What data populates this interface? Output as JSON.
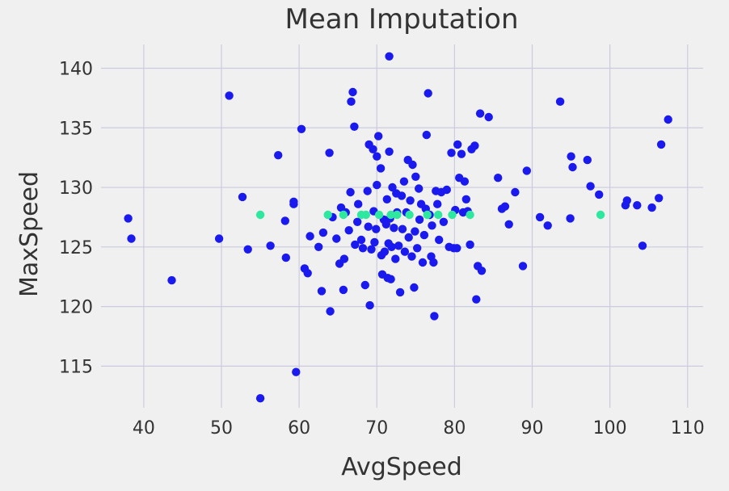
{
  "chart_data": {
    "type": "scatter",
    "title": "Mean Imputation",
    "xlabel": "AvgSpeed",
    "ylabel": "MaxSpeed",
    "xlim": [
      34.5,
      112
    ],
    "ylim": [
      111.5,
      142
    ],
    "xticks": [
      40,
      50,
      60,
      70,
      80,
      90,
      100,
      110
    ],
    "yticks": [
      115,
      120,
      125,
      130,
      135,
      140
    ],
    "grid": true,
    "colors": {
      "background": "#f0f0f0",
      "grid": "#cbcbe0",
      "observed": "#1a1aee",
      "imputed": "#2ee8a0",
      "text": "#333333"
    },
    "series": [
      {
        "role": "observed",
        "points": [
          [
            38.0,
            127.4
          ],
          [
            38.4,
            125.7
          ],
          [
            43.6,
            122.2
          ],
          [
            49.7,
            125.7
          ],
          [
            51.0,
            137.7
          ],
          [
            52.7,
            129.2
          ],
          [
            53.4,
            124.8
          ],
          [
            55.0,
            112.3
          ],
          [
            56.3,
            125.1
          ],
          [
            57.3,
            132.7
          ],
          [
            58.2,
            127.2
          ],
          [
            58.3,
            124.1
          ],
          [
            59.3,
            128.6
          ],
          [
            59.3,
            128.8
          ],
          [
            59.6,
            114.5
          ],
          [
            60.3,
            134.9
          ],
          [
            60.7,
            123.2
          ],
          [
            61.1,
            122.8
          ],
          [
            61.4,
            125.9
          ],
          [
            62.5,
            125.0
          ],
          [
            62.9,
            121.3
          ],
          [
            63.1,
            126.2
          ],
          [
            63.9,
            132.9
          ],
          [
            64.0,
            119.6
          ],
          [
            64.3,
            127.5
          ],
          [
            64.8,
            125.7
          ],
          [
            65.2,
            123.6
          ],
          [
            65.4,
            128.3
          ],
          [
            65.7,
            121.4
          ],
          [
            65.8,
            124.0
          ],
          [
            66.0,
            127.9
          ],
          [
            66.4,
            126.4
          ],
          [
            66.6,
            129.6
          ],
          [
            66.7,
            137.2
          ],
          [
            66.9,
            138.0
          ],
          [
            67.1,
            135.1
          ],
          [
            67.2,
            125.2
          ],
          [
            67.5,
            127.1
          ],
          [
            67.6,
            128.6
          ],
          [
            68.0,
            125.6
          ],
          [
            68.2,
            124.9
          ],
          [
            68.5,
            121.8
          ],
          [
            68.8,
            129.7
          ],
          [
            68.9,
            126.7
          ],
          [
            69.0,
            133.6
          ],
          [
            69.1,
            120.1
          ],
          [
            69.3,
            124.8
          ],
          [
            69.5,
            133.2
          ],
          [
            69.6,
            128.0
          ],
          [
            69.7,
            125.4
          ],
          [
            69.9,
            126.5
          ],
          [
            70.0,
            130.2
          ],
          [
            70.0,
            132.6
          ],
          [
            70.2,
            134.3
          ],
          [
            70.5,
            131.6
          ],
          [
            70.6,
            124.3
          ],
          [
            70.7,
            122.7
          ],
          [
            70.9,
            127.3
          ],
          [
            71.0,
            124.6
          ],
          [
            71.2,
            126.9
          ],
          [
            71.3,
            129.0
          ],
          [
            71.4,
            122.4
          ],
          [
            71.5,
            125.3
          ],
          [
            71.6,
            141.0
          ],
          [
            71.6,
            133.0
          ],
          [
            71.7,
            127.4
          ],
          [
            71.8,
            122.3
          ],
          [
            71.9,
            125.0
          ],
          [
            72.0,
            130.0
          ],
          [
            72.2,
            126.6
          ],
          [
            72.4,
            124.0
          ],
          [
            72.5,
            129.5
          ],
          [
            72.6,
            127.9
          ],
          [
            72.8,
            125.1
          ],
          [
            73.0,
            121.2
          ],
          [
            73.2,
            129.3
          ],
          [
            73.3,
            126.5
          ],
          [
            73.5,
            130.5
          ],
          [
            73.6,
            124.6
          ],
          [
            73.8,
            127.9
          ],
          [
            74.0,
            132.3
          ],
          [
            74.1,
            125.8
          ],
          [
            74.3,
            128.9
          ],
          [
            74.5,
            124.2
          ],
          [
            74.6,
            131.9
          ],
          [
            74.8,
            121.6
          ],
          [
            74.9,
            126.3
          ],
          [
            75.0,
            130.9
          ],
          [
            75.2,
            124.9
          ],
          [
            75.4,
            129.9
          ],
          [
            75.5,
            127.3
          ],
          [
            75.7,
            128.6
          ],
          [
            75.9,
            123.7
          ],
          [
            76.1,
            126.0
          ],
          [
            76.3,
            128.2
          ],
          [
            76.4,
            134.4
          ],
          [
            76.6,
            137.9
          ],
          [
            76.8,
            127.7
          ],
          [
            77.0,
            124.2
          ],
          [
            77.1,
            126.8
          ],
          [
            77.3,
            123.7
          ],
          [
            77.4,
            119.2
          ],
          [
            77.6,
            129.7
          ],
          [
            77.8,
            128.6
          ],
          [
            78.0,
            125.6
          ],
          [
            78.3,
            129.6
          ],
          [
            78.6,
            127.1
          ],
          [
            79.0,
            129.8
          ],
          [
            79.3,
            125.0
          ],
          [
            79.6,
            132.9
          ],
          [
            79.9,
            124.9
          ],
          [
            80.1,
            128.1
          ],
          [
            80.3,
            124.9
          ],
          [
            80.4,
            133.6
          ],
          [
            80.6,
            130.8
          ],
          [
            80.9,
            132.8
          ],
          [
            81.1,
            127.9
          ],
          [
            81.3,
            130.5
          ],
          [
            81.5,
            129.0
          ],
          [
            81.7,
            128.0
          ],
          [
            82.0,
            125.2
          ],
          [
            82.2,
            133.2
          ],
          [
            82.6,
            133.5
          ],
          [
            82.8,
            120.6
          ],
          [
            83.0,
            123.4
          ],
          [
            83.3,
            136.2
          ],
          [
            83.5,
            123.0
          ],
          [
            84.4,
            135.9
          ],
          [
            85.6,
            130.8
          ],
          [
            86.1,
            128.2
          ],
          [
            86.5,
            128.4
          ],
          [
            87.0,
            126.9
          ],
          [
            87.8,
            129.6
          ],
          [
            88.8,
            123.4
          ],
          [
            89.3,
            131.4
          ],
          [
            91.0,
            127.5
          ],
          [
            92.0,
            126.8
          ],
          [
            93.6,
            137.2
          ],
          [
            94.9,
            127.4
          ],
          [
            95.0,
            132.6
          ],
          [
            95.2,
            131.7
          ],
          [
            97.1,
            132.3
          ],
          [
            97.5,
            130.1
          ],
          [
            98.6,
            129.4
          ],
          [
            102.0,
            128.5
          ],
          [
            102.2,
            128.9
          ],
          [
            103.5,
            128.5
          ],
          [
            104.2,
            125.1
          ],
          [
            105.4,
            128.3
          ],
          [
            106.3,
            129.1
          ],
          [
            106.6,
            133.6
          ],
          [
            107.5,
            135.7
          ]
        ]
      },
      {
        "role": "imputed",
        "points": [
          [
            55.0,
            127.7
          ],
          [
            63.7,
            127.7
          ],
          [
            65.7,
            127.7
          ],
          [
            68.0,
            127.7
          ],
          [
            68.6,
            127.7
          ],
          [
            70.3,
            127.7
          ],
          [
            71.8,
            127.7
          ],
          [
            72.6,
            127.7
          ],
          [
            74.2,
            127.7
          ],
          [
            76.5,
            127.7
          ],
          [
            77.9,
            127.7
          ],
          [
            79.7,
            127.7
          ],
          [
            82.0,
            127.7
          ],
          [
            98.8,
            127.7
          ]
        ]
      }
    ]
  }
}
